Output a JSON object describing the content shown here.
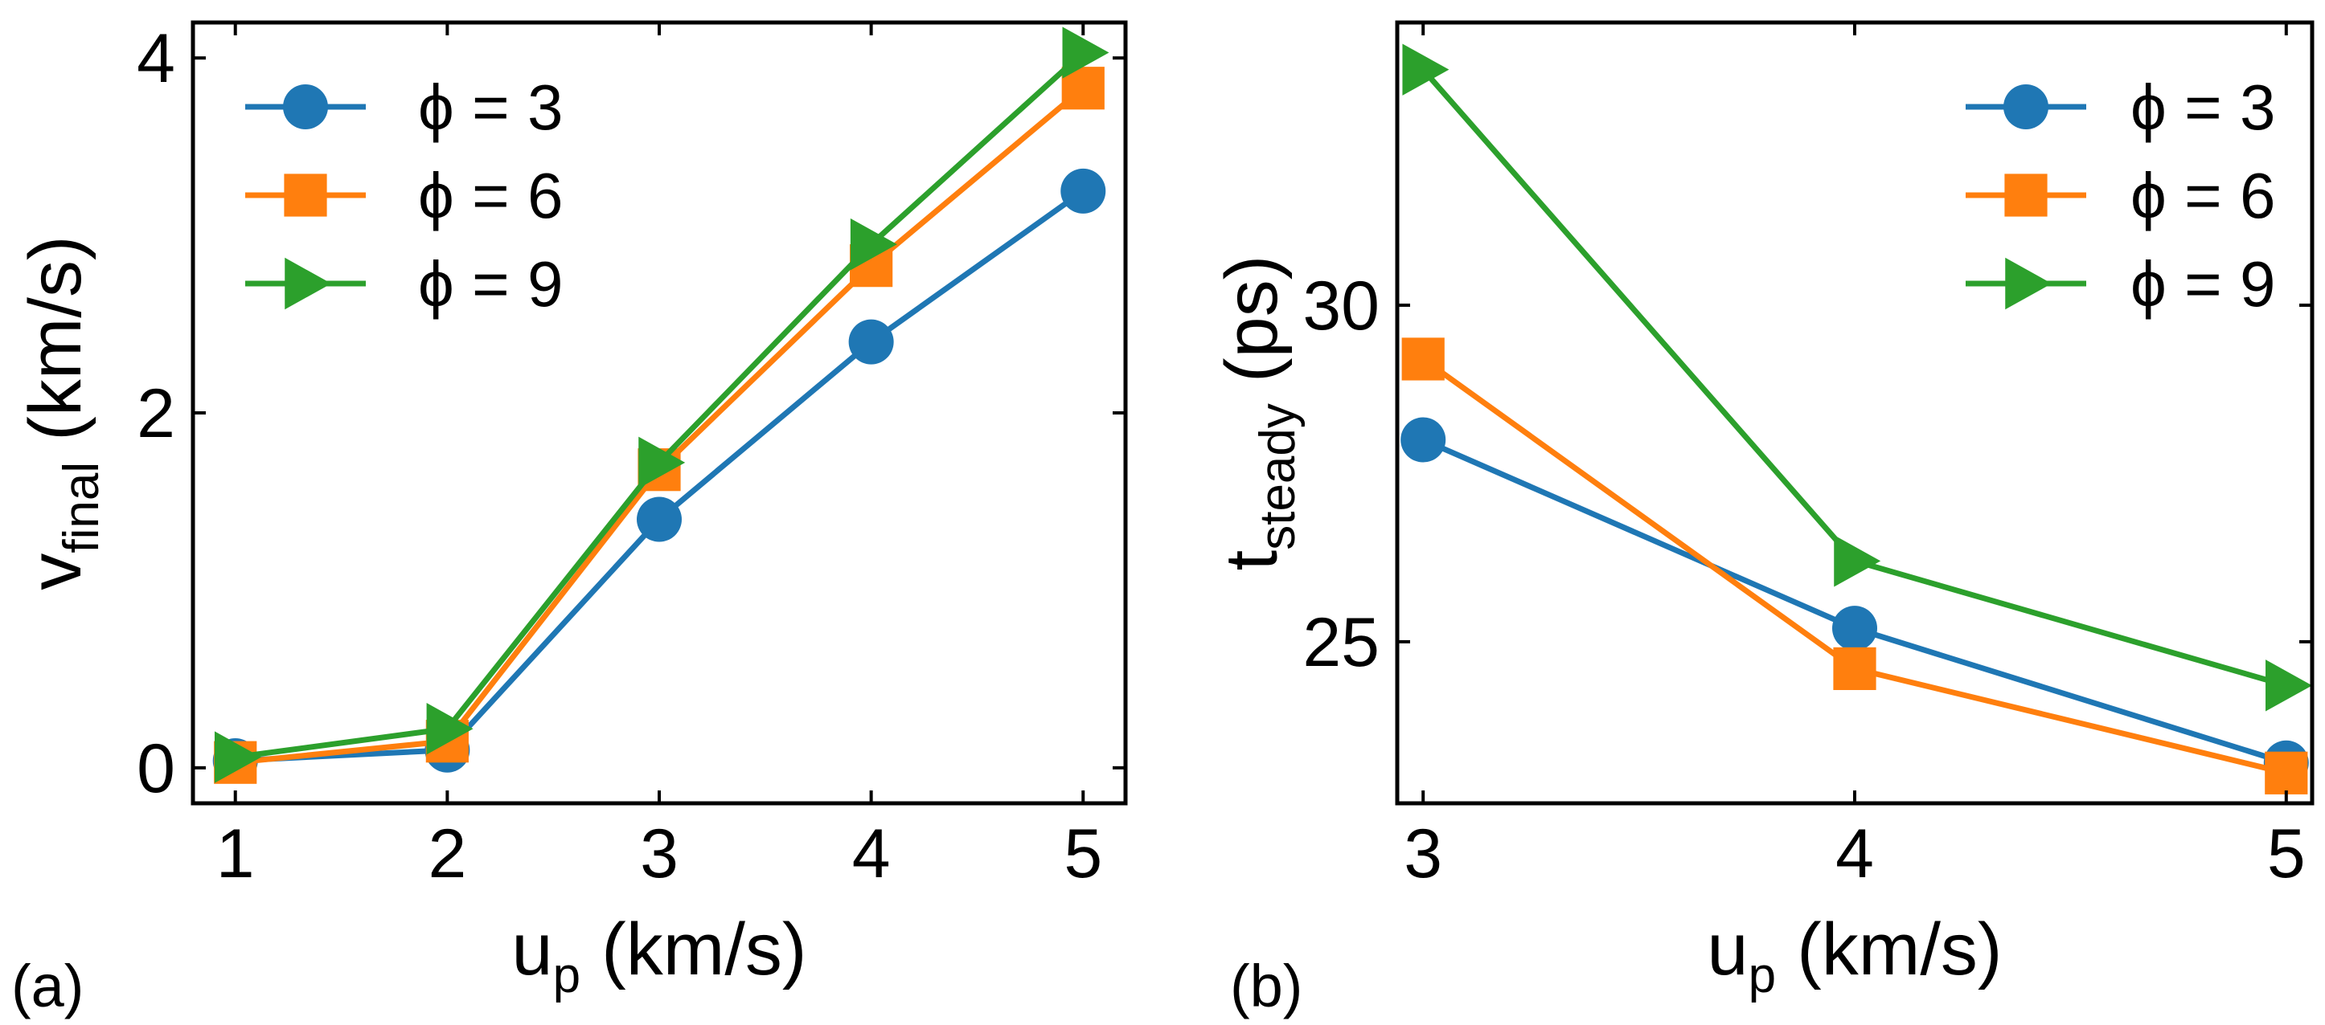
{
  "chart_data": [
    {
      "panel_label": "(a)",
      "type": "line",
      "xlabel_main": "u",
      "xlabel_sub": "p",
      "xlabel_units": "(km/s)",
      "ylabel_main": "v",
      "ylabel_sub": "final",
      "ylabel_units": "(km/s)",
      "xlim": [
        0.8,
        5.2
      ],
      "ylim": [
        -0.2,
        4.2
      ],
      "xticks": [
        1,
        2,
        3,
        4,
        5
      ],
      "xtick_labels": [
        "1",
        "2",
        "3",
        "4",
        "5"
      ],
      "yticks": [
        0,
        2,
        4
      ],
      "ytick_labels": [
        "0",
        "2",
        "4"
      ],
      "legend_position": "top-left",
      "series": [
        {
          "name": "ϕ = 3",
          "color": "#1f77b4",
          "marker": "circle",
          "x": [
            1,
            2,
            3,
            4,
            5
          ],
          "y": [
            0.04,
            0.1,
            1.4,
            2.4,
            3.25
          ]
        },
        {
          "name": "ϕ = 6",
          "color": "#ff7f0e",
          "marker": "square",
          "x": [
            1,
            2,
            3,
            4,
            5
          ],
          "y": [
            0.03,
            0.15,
            1.68,
            2.83,
            3.83
          ]
        },
        {
          "name": "ϕ = 9",
          "color": "#2ca02c",
          "marker": "triangle-right",
          "x": [
            1,
            2,
            3,
            4,
            5
          ],
          "y": [
            0.06,
            0.22,
            1.72,
            2.95,
            4.03
          ]
        }
      ]
    },
    {
      "panel_label": "(b)",
      "type": "line",
      "xlabel_main": "u",
      "xlabel_sub": "p",
      "xlabel_units": "(km/s)",
      "ylabel_main": "t",
      "ylabel_sub": "steady",
      "ylabel_units": "(ps)",
      "xlim": [
        2.94,
        5.06
      ],
      "ylim": [
        22.6,
        34.2
      ],
      "xticks": [
        3,
        4,
        5
      ],
      "xtick_labels": [
        "3",
        "4",
        "5"
      ],
      "yticks": [
        25,
        30
      ],
      "ytick_labels": [
        "25",
        "30"
      ],
      "legend_position": "top-right",
      "series": [
        {
          "name": "ϕ = 3",
          "color": "#1f77b4",
          "marker": "circle",
          "x": [
            3,
            4,
            5
          ],
          "y": [
            28,
            25.2,
            23.2
          ]
        },
        {
          "name": "ϕ = 6",
          "color": "#ff7f0e",
          "marker": "square",
          "x": [
            3,
            4,
            5
          ],
          "y": [
            29.2,
            24.6,
            23.05
          ]
        },
        {
          "name": "ϕ = 9",
          "color": "#2ca02c",
          "marker": "triangle-right",
          "x": [
            3,
            4,
            5
          ],
          "y": [
            33.5,
            26.2,
            24.35
          ]
        }
      ]
    }
  ]
}
